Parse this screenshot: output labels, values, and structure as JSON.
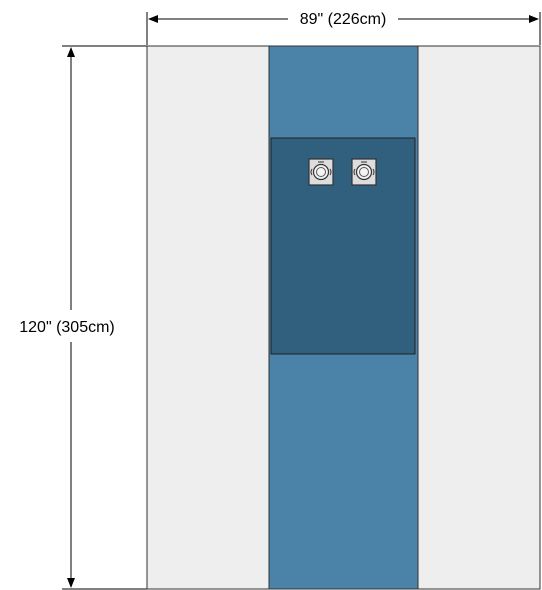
{
  "dimensions": {
    "width_label": "89\" (226cm)",
    "height_label": "120\" (305cm)"
  },
  "colors": {
    "side_panels": "#eeeeee",
    "center_strip": "#4a82a8",
    "reinforced_area": "#315f7e",
    "outline": "#333333",
    "port_fill": "#dddddd"
  },
  "ports": [
    {
      "name": "fluid-port-left"
    },
    {
      "name": "fluid-port-right"
    }
  ]
}
